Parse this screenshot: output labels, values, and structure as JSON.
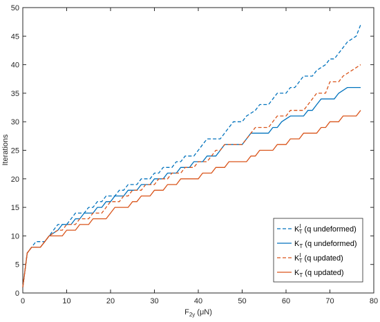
{
  "chart_data": {
    "type": "line",
    "xlabel": {
      "main": "F",
      "sub": "2y",
      "unit": "(μN)"
    },
    "ylabel": "Iterations",
    "xlim": [
      0,
      80
    ],
    "ylim": [
      0,
      50
    ],
    "xticks": [
      "0",
      "10",
      "20",
      "30",
      "40",
      "50",
      "60",
      "70",
      "80"
    ],
    "yticks": [
      "0",
      "5",
      "10",
      "15",
      "20",
      "25",
      "30",
      "35",
      "40",
      "45",
      "50"
    ],
    "grid": false,
    "legend_position": "bottom-right",
    "series": [
      {
        "name": "K^I_T (q undeformed)",
        "legend": {
          "base": "K",
          "sup": "I",
          "sub": "T",
          "rest": " (q undeformed)"
        },
        "color": "#0072BD",
        "dash": true,
        "points": [
          [
            0,
            1
          ],
          [
            1,
            7
          ],
          [
            2,
            8
          ],
          [
            3,
            9
          ],
          [
            5,
            9
          ],
          [
            6,
            10
          ],
          [
            7,
            11
          ],
          [
            8,
            12
          ],
          [
            10,
            12
          ],
          [
            11,
            13
          ],
          [
            12,
            14
          ],
          [
            14,
            14
          ],
          [
            15,
            15
          ],
          [
            16,
            15
          ],
          [
            17,
            16
          ],
          [
            18,
            16
          ],
          [
            19,
            17
          ],
          [
            21,
            17
          ],
          [
            22,
            18
          ],
          [
            23,
            18
          ],
          [
            24,
            19
          ],
          [
            26,
            19
          ],
          [
            27,
            20
          ],
          [
            29,
            20
          ],
          [
            30,
            21
          ],
          [
            31,
            21
          ],
          [
            32,
            22
          ],
          [
            34,
            22
          ],
          [
            35,
            23
          ],
          [
            36,
            23
          ],
          [
            37,
            24
          ],
          [
            39,
            24
          ],
          [
            40,
            25
          ],
          [
            41,
            26
          ],
          [
            42,
            27
          ],
          [
            45,
            27
          ],
          [
            46,
            28
          ],
          [
            47,
            29
          ],
          [
            48,
            30
          ],
          [
            50,
            30
          ],
          [
            51,
            31
          ],
          [
            53,
            32
          ],
          [
            54,
            33
          ],
          [
            56,
            33
          ],
          [
            57,
            34
          ],
          [
            58,
            35
          ],
          [
            60,
            35
          ],
          [
            61,
            36
          ],
          [
            62,
            36
          ],
          [
            63,
            37
          ],
          [
            64,
            38
          ],
          [
            66,
            38
          ],
          [
            67,
            39
          ],
          [
            69,
            40
          ],
          [
            70,
            41
          ],
          [
            71,
            41
          ],
          [
            72,
            42
          ],
          [
            73,
            43
          ],
          [
            74,
            44
          ],
          [
            76,
            45
          ],
          [
            77,
            47
          ]
        ]
      },
      {
        "name": "K_T (q undeformed)",
        "legend": {
          "base": "K",
          "sup": "",
          "sub": "T",
          "rest": " (q undeformed)"
        },
        "color": "#0072BD",
        "dash": false,
        "points": [
          [
            0,
            1
          ],
          [
            1,
            7
          ],
          [
            2,
            8
          ],
          [
            4,
            8
          ],
          [
            5,
            9
          ],
          [
            6,
            10
          ],
          [
            8,
            11
          ],
          [
            9,
            12
          ],
          [
            10,
            12
          ],
          [
            11,
            12
          ],
          [
            12,
            13
          ],
          [
            13,
            13
          ],
          [
            14,
            14
          ],
          [
            16,
            14
          ],
          [
            17,
            15
          ],
          [
            18,
            15
          ],
          [
            19,
            16
          ],
          [
            20,
            16
          ],
          [
            21,
            17
          ],
          [
            23,
            17
          ],
          [
            24,
            18
          ],
          [
            26,
            18
          ],
          [
            27,
            19
          ],
          [
            29,
            19
          ],
          [
            30,
            20
          ],
          [
            32,
            20
          ],
          [
            33,
            21
          ],
          [
            35,
            21
          ],
          [
            36,
            22
          ],
          [
            38,
            22
          ],
          [
            39,
            23
          ],
          [
            41,
            23
          ],
          [
            42,
            24
          ],
          [
            44,
            24
          ],
          [
            45,
            25
          ],
          [
            46,
            26
          ],
          [
            50,
            26
          ],
          [
            51,
            27
          ],
          [
            52,
            28
          ],
          [
            56,
            28
          ],
          [
            57,
            29
          ],
          [
            58,
            29
          ],
          [
            59,
            30
          ],
          [
            61,
            31
          ],
          [
            64,
            31
          ],
          [
            65,
            32
          ],
          [
            66,
            32
          ],
          [
            67,
            33
          ],
          [
            68,
            34
          ],
          [
            71,
            34
          ],
          [
            72,
            35
          ],
          [
            74,
            36
          ],
          [
            77,
            36
          ]
        ]
      },
      {
        "name": "K^I_T (q updated)",
        "legend": {
          "base": "K",
          "sup": "I",
          "sub": "T",
          "rest": " (q updated)"
        },
        "color": "#D95319",
        "dash": true,
        "points": [
          [
            0,
            1
          ],
          [
            1,
            7
          ],
          [
            2,
            8
          ],
          [
            4,
            8
          ],
          [
            5,
            9
          ],
          [
            6,
            10
          ],
          [
            8,
            11
          ],
          [
            9,
            11
          ],
          [
            10,
            12
          ],
          [
            12,
            12
          ],
          [
            13,
            13
          ],
          [
            15,
            13
          ],
          [
            16,
            14
          ],
          [
            18,
            14
          ],
          [
            19,
            15
          ],
          [
            20,
            16
          ],
          [
            22,
            16
          ],
          [
            23,
            17
          ],
          [
            24,
            17
          ],
          [
            25,
            18
          ],
          [
            27,
            18
          ],
          [
            28,
            19
          ],
          [
            30,
            19
          ],
          [
            31,
            20
          ],
          [
            33,
            20
          ],
          [
            34,
            21
          ],
          [
            36,
            21
          ],
          [
            37,
            22
          ],
          [
            39,
            22
          ],
          [
            40,
            23
          ],
          [
            42,
            23
          ],
          [
            43,
            24
          ],
          [
            44,
            25
          ],
          [
            45,
            25
          ],
          [
            46,
            26
          ],
          [
            50,
            26
          ],
          [
            51,
            27
          ],
          [
            52,
            28
          ],
          [
            53,
            29
          ],
          [
            56,
            29
          ],
          [
            57,
            30
          ],
          [
            58,
            31
          ],
          [
            60,
            31
          ],
          [
            61,
            32
          ],
          [
            64,
            32
          ],
          [
            65,
            33
          ],
          [
            66,
            34
          ],
          [
            67,
            35
          ],
          [
            69,
            35
          ],
          [
            70,
            37
          ],
          [
            72,
            37
          ],
          [
            73,
            38
          ],
          [
            75,
            39
          ],
          [
            77,
            40
          ]
        ]
      },
      {
        "name": "K_T (q updated)",
        "legend": {
          "base": "K",
          "sup": "",
          "sub": "T",
          "rest": " (q updated)"
        },
        "color": "#D95319",
        "dash": false,
        "points": [
          [
            0,
            1
          ],
          [
            1,
            7
          ],
          [
            2,
            8
          ],
          [
            4,
            8
          ],
          [
            5,
            9
          ],
          [
            6,
            10
          ],
          [
            9,
            10
          ],
          [
            10,
            11
          ],
          [
            12,
            11
          ],
          [
            13,
            12
          ],
          [
            15,
            12
          ],
          [
            16,
            13
          ],
          [
            19,
            13
          ],
          [
            20,
            14
          ],
          [
            21,
            15
          ],
          [
            24,
            15
          ],
          [
            25,
            16
          ],
          [
            26,
            16
          ],
          [
            27,
            17
          ],
          [
            29,
            17
          ],
          [
            30,
            18
          ],
          [
            32,
            18
          ],
          [
            33,
            19
          ],
          [
            35,
            19
          ],
          [
            36,
            20
          ],
          [
            40,
            20
          ],
          [
            41,
            21
          ],
          [
            43,
            21
          ],
          [
            44,
            22
          ],
          [
            46,
            22
          ],
          [
            47,
            23
          ],
          [
            51,
            23
          ],
          [
            52,
            24
          ],
          [
            53,
            24
          ],
          [
            54,
            25
          ],
          [
            57,
            25
          ],
          [
            58,
            26
          ],
          [
            60,
            26
          ],
          [
            61,
            27
          ],
          [
            63,
            27
          ],
          [
            64,
            28
          ],
          [
            67,
            28
          ],
          [
            68,
            29
          ],
          [
            69,
            29
          ],
          [
            70,
            30
          ],
          [
            72,
            30
          ],
          [
            73,
            31
          ],
          [
            75,
            31
          ],
          [
            76,
            31
          ],
          [
            77,
            32
          ]
        ]
      }
    ]
  }
}
